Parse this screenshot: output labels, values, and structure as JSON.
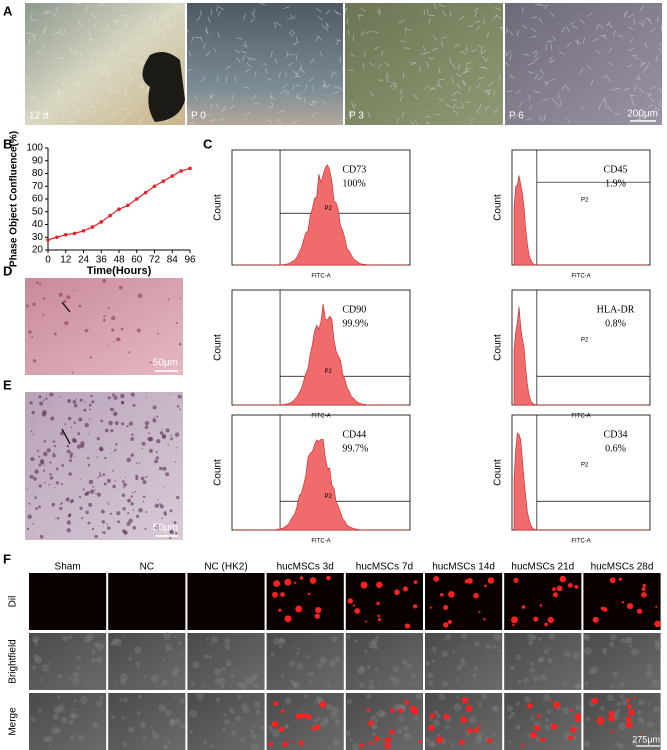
{
  "panel_labels": [
    "A",
    "B",
    "C",
    "D",
    "E",
    "F"
  ],
  "panel_a": {
    "images": [
      "12 d",
      "P 0",
      "P 3",
      "P 6"
    ],
    "scale": "200μm"
  },
  "chart_data": {
    "type": "line",
    "x_label": "Time(Hours)",
    "y_label": "Phase Object Confluence(%)",
    "x": [
      0,
      6,
      12,
      18,
      24,
      30,
      36,
      42,
      48,
      54,
      60,
      66,
      72,
      78,
      84,
      90,
      96
    ],
    "series": [
      {
        "name": "Confluence",
        "color": "#e8202a",
        "values": [
          28,
          30,
          32,
          33,
          35,
          38,
          42,
          47,
          52,
          55,
          60,
          65,
          70,
          74,
          78,
          82,
          84
        ]
      }
    ],
    "xlim": [
      0,
      96
    ],
    "xticks": [
      0,
      12,
      24,
      36,
      48,
      60,
      72,
      84,
      96
    ],
    "ylim": [
      20,
      100
    ],
    "yticks": [
      20,
      30,
      40,
      50,
      60,
      70,
      80,
      90,
      100
    ]
  },
  "flow": [
    {
      "marker": "CD73",
      "percent": "100%",
      "gate": "P2",
      "y_label": "Count",
      "x_label": "FITC-A"
    },
    {
      "marker": "CD45",
      "percent": "1.9%",
      "gate": "P2",
      "y_label": "Count",
      "x_label": "FITC-A"
    },
    {
      "marker": "CD90",
      "percent": "99.9%",
      "gate": "P2",
      "y_label": "Count",
      "x_label": "FITC-A"
    },
    {
      "marker": "HLA-DR",
      "percent": "0.8%",
      "gate": "P2",
      "y_label": "Count",
      "x_label": "FITC-A"
    },
    {
      "marker": "CD44",
      "percent": "99.7%",
      "gate": "P2",
      "y_label": "Count",
      "x_label": "FITC-A"
    },
    {
      "marker": "CD34",
      "percent": "0.6%",
      "gate": "P2",
      "y_label": "Count",
      "x_label": "FITC-A"
    }
  ],
  "panel_d": {
    "scale": "50μm"
  },
  "panel_e": {
    "scale": "50μm"
  },
  "panel_f": {
    "columns": [
      "Sham",
      "NC",
      "NC (HK2)",
      "hucMSCs 3d",
      "hucMSCs 7d",
      "hucMSCs 14d",
      "hucMSCs 21d",
      "hucMSCs 28d"
    ],
    "rows": [
      "Dil",
      "Brightfield",
      "Merge"
    ],
    "scale": "275μm"
  }
}
